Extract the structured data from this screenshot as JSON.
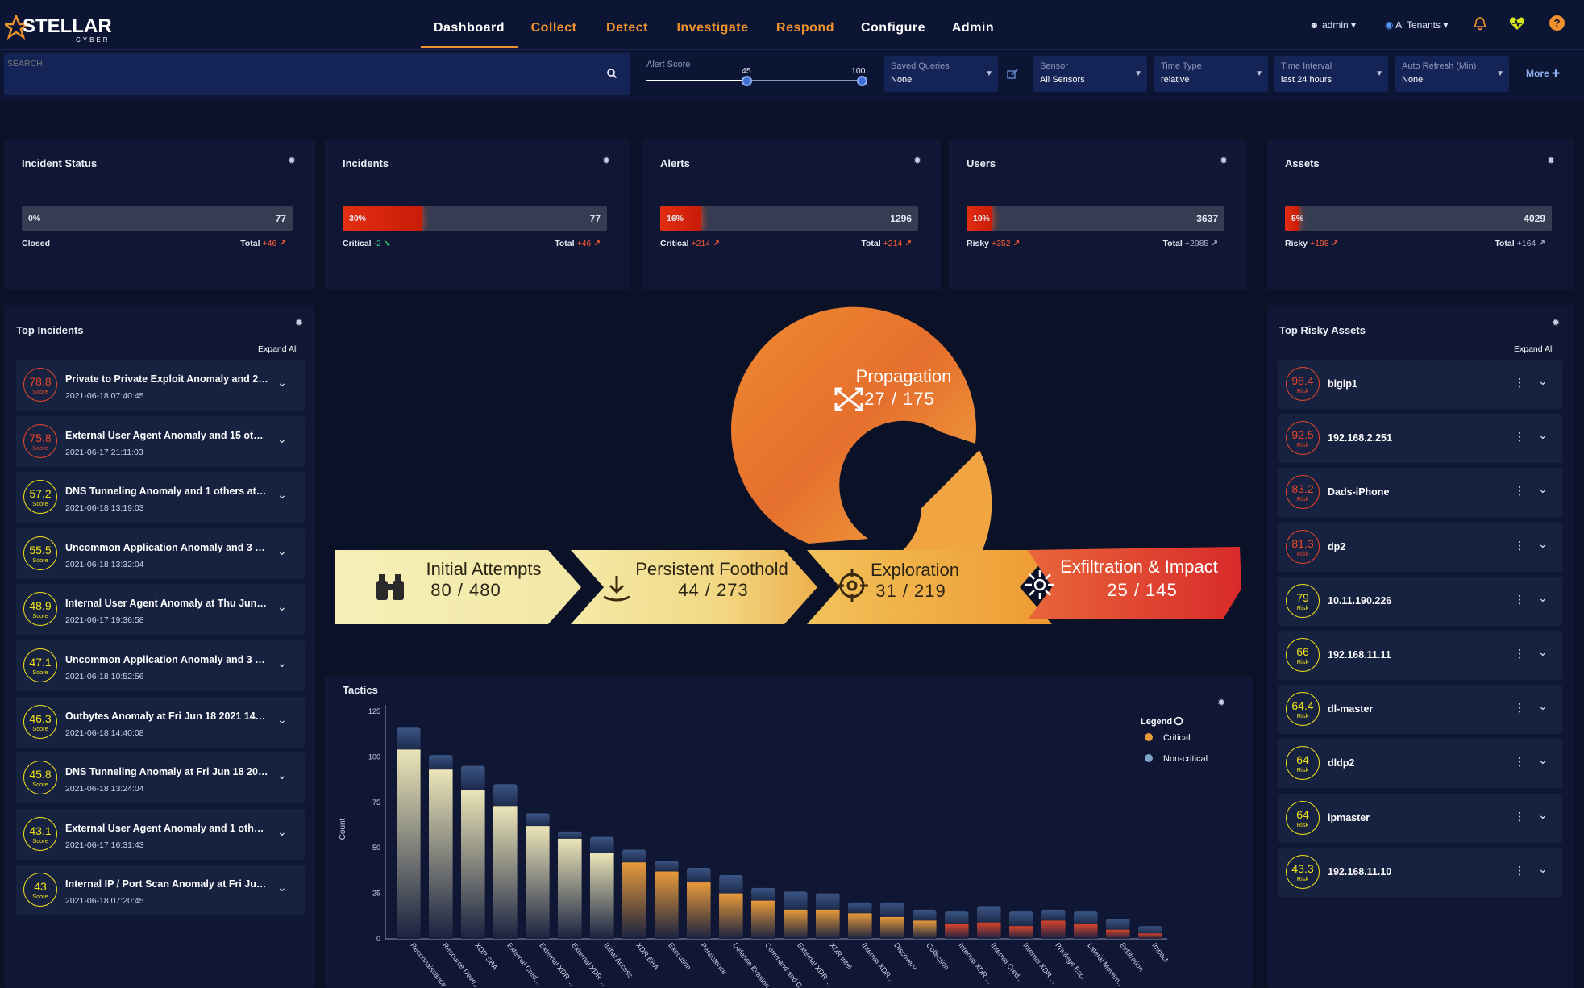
{
  "brand": {
    "name": "STELLAR",
    "sub": "CYBER"
  },
  "nav": [
    {
      "label": "Dashboard",
      "active": true,
      "color": "white"
    },
    {
      "label": "Collect",
      "color": "orange"
    },
    {
      "label": "Detect",
      "color": "orange"
    },
    {
      "label": "Investigate",
      "color": "orange"
    },
    {
      "label": "Respond",
      "color": "orange"
    },
    {
      "label": "Configure",
      "color": "white"
    },
    {
      "label": "Admin",
      "color": "white"
    }
  ],
  "topright": {
    "user": "admin",
    "tenant": "Al Tenants"
  },
  "search": {
    "placeholder": "SEARCH:"
  },
  "alert_score": {
    "label": "Alert Score",
    "min": "45",
    "max": "100"
  },
  "filters": [
    {
      "label": "Saved Queries",
      "value": "None"
    },
    {
      "label": "Sensor",
      "value": "All Sensors"
    },
    {
      "label": "Time Type",
      "value": "relative"
    },
    {
      "label": "Time Interval",
      "value": "last 24 hours"
    },
    {
      "label": "Auto Refresh (Min)",
      "value": "None"
    }
  ],
  "more_label": "More",
  "stats": [
    {
      "title": "Incident Status",
      "pct": "0%",
      "fraction": 0.0,
      "total": "77",
      "left_label": "Closed",
      "left_delta": "",
      "right_label": "Total",
      "right_delta": "+46"
    },
    {
      "title": "Incidents",
      "pct": "30%",
      "fraction": 0.3,
      "total": "77",
      "left_label": "Critical",
      "left_delta": "-2",
      "right_label": "Total",
      "right_delta": "+46"
    },
    {
      "title": "Alerts",
      "pct": "16%",
      "fraction": 0.16,
      "total": "1296",
      "left_label": "Critical",
      "left_delta": "+214",
      "right_label": "Total",
      "right_delta": "+214"
    },
    {
      "title": "Users",
      "pct": "10%",
      "fraction": 0.1,
      "total": "3637",
      "left_label": "Risky",
      "left_delta": "+352",
      "right_label": "Total",
      "right_delta": "+2985"
    },
    {
      "title": "Assets",
      "pct": "5%",
      "fraction": 0.05,
      "total": "4029",
      "left_label": "Risky",
      "left_delta": "+198",
      "right_label": "Total",
      "right_delta": "+164"
    }
  ],
  "top_incidents": {
    "title": "Top Incidents",
    "expand": "Expand All",
    "unit": "Score",
    "items": [
      {
        "score": "78.8",
        "title": "Private to Private Exploit Anomaly and 2 ot...",
        "time": "2021-06-18 07:40:45",
        "color": "#e8452b"
      },
      {
        "score": "75.8",
        "title": "External User Agent Anomaly and 15 other...",
        "time": "2021-06-17 21:11:03",
        "color": "#e8452b"
      },
      {
        "score": "57.2",
        "title": "DNS Tunneling Anomaly and 1 others at Fri...",
        "time": "2021-06-18 13:19:03",
        "color": "#f2e21a"
      },
      {
        "score": "55.5",
        "title": "Uncommon Application Anomaly and 3 oth...",
        "time": "2021-06-18 13:32:04",
        "color": "#f2e21a"
      },
      {
        "score": "48.9",
        "title": "Internal User Agent Anomaly at Thu Jun 17...",
        "time": "2021-06-17 19:36:58",
        "color": "#f2e21a"
      },
      {
        "score": "47.1",
        "title": "Uncommon Application Anomaly and 3 oth...",
        "time": "2021-06-18 10:52:56",
        "color": "#f2e21a"
      },
      {
        "score": "46.3",
        "title": "Outbytes Anomaly at Fri Jun 18 2021 14:3...",
        "time": "2021-06-18 14:40:08",
        "color": "#f2e21a"
      },
      {
        "score": "45.8",
        "title": "DNS Tunneling Anomaly at Fri Jun 18 2021...",
        "time": "2021-06-18 13:24:04",
        "color": "#f2e21a"
      },
      {
        "score": "43.1",
        "title": "External User Agent Anomaly and 1 others ...",
        "time": "2021-06-17 16:31:43",
        "color": "#f2e21a"
      },
      {
        "score": "43",
        "title": "Internal IP / Port Scan Anomaly at Fri Jun 1...",
        "time": "2021-06-18 07:20:45",
        "color": "#f2e21a"
      }
    ]
  },
  "top_assets": {
    "title": "Top Risky Assets",
    "expand": "Expand All",
    "unit": "Risk",
    "items": [
      {
        "score": "98.4",
        "name": "bigip1",
        "color": "#e8452b"
      },
      {
        "score": "92.5",
        "name": "192.168.2.251",
        "color": "#e8452b"
      },
      {
        "score": "83.2",
        "name": "Dads-iPhone",
        "color": "#e8452b"
      },
      {
        "score": "81.3",
        "name": "dp2",
        "color": "#e8452b"
      },
      {
        "score": "79",
        "name": "10.11.190.226",
        "color": "#f2e21a"
      },
      {
        "score": "66",
        "name": "192.168.11.11",
        "color": "#f2e21a"
      },
      {
        "score": "64.4",
        "name": "dl-master",
        "color": "#f2e21a"
      },
      {
        "score": "64",
        "name": "dldp2",
        "color": "#f2e21a"
      },
      {
        "score": "64",
        "name": "ipmaster",
        "color": "#f2e21a"
      },
      {
        "score": "43.3",
        "name": "192.168.11.10",
        "color": "#f2e21a"
      }
    ]
  },
  "killchain": {
    "initial": {
      "label": "Initial Attempts",
      "value": "80 / 480"
    },
    "foothold": {
      "label": "Persistent Foothold",
      "value": "44 / 273"
    },
    "propagation": {
      "label": "Propagation",
      "value": "27 / 175"
    },
    "exploration": {
      "label": "Exploration",
      "value": "31 / 219"
    },
    "exfil": {
      "label": "Exfiltration & Impact",
      "value": "25 / 145"
    }
  },
  "chart_data": {
    "type": "bar",
    "title": "Tactics",
    "ylabel": "Count",
    "ylim": [
      0,
      125
    ],
    "yticks": [
      "0",
      "25",
      "50",
      "75",
      "100",
      "125"
    ],
    "ytick_values": [
      0,
      25,
      50,
      75,
      100,
      125
    ],
    "legend": {
      "title": "Legend",
      "items": [
        {
          "name": "Critical",
          "color": "#e89a3a"
        },
        {
          "name": "Non-critical",
          "color": "#7fa2c8"
        }
      ]
    },
    "categories": [
      "Reconnaissance",
      "Resource Deve...",
      "XDR SBA",
      "External Cred...",
      "External XDR ...",
      "External XDR ...",
      "Initial Access",
      "XDR EBA",
      "Execution",
      "Persistence",
      "Defense Evasion",
      "Command and C...",
      "External XDR ...",
      "XDR Intel",
      "Internal XDR ...",
      "Discovery",
      "Collection",
      "Internal XDR ...",
      "Internal Cred...",
      "Internal XDR ...",
      "Privilege Esc...",
      "Lateral Movem...",
      "Exfiltration",
      "Impact"
    ],
    "series": [
      {
        "name": "Critical",
        "values": [
          104,
          93,
          82,
          73,
          62,
          55,
          47,
          42,
          37,
          31,
          25,
          21,
          16,
          16,
          14,
          12,
          10,
          8,
          9,
          7,
          10,
          8,
          5,
          3
        ]
      },
      {
        "name": "Non-critical",
        "values": [
          12,
          8,
          13,
          12,
          7,
          4,
          9,
          7,
          6,
          8,
          10,
          7,
          10,
          9,
          6,
          8,
          6,
          7,
          9,
          8,
          6,
          7,
          6,
          4
        ]
      }
    ],
    "segment_colors": [
      "#ebe5b8",
      "#ebe5b8",
      "#ebe5b8",
      "#ebe5b8",
      "#ebe5b8",
      "#ebe5b8",
      "#ebe5b8",
      "#e89a3a",
      "#e89a3a",
      "#e89a3a",
      "#e89a3a",
      "#e89a3a",
      "#e89a3a",
      "#e89a3a",
      "#e89a3a",
      "#e89a3a",
      "#e89a3a",
      "#d6442a",
      "#d6442a",
      "#d6442a",
      "#d6442a",
      "#d6442a",
      "#d6442a",
      "#d6442a"
    ]
  }
}
